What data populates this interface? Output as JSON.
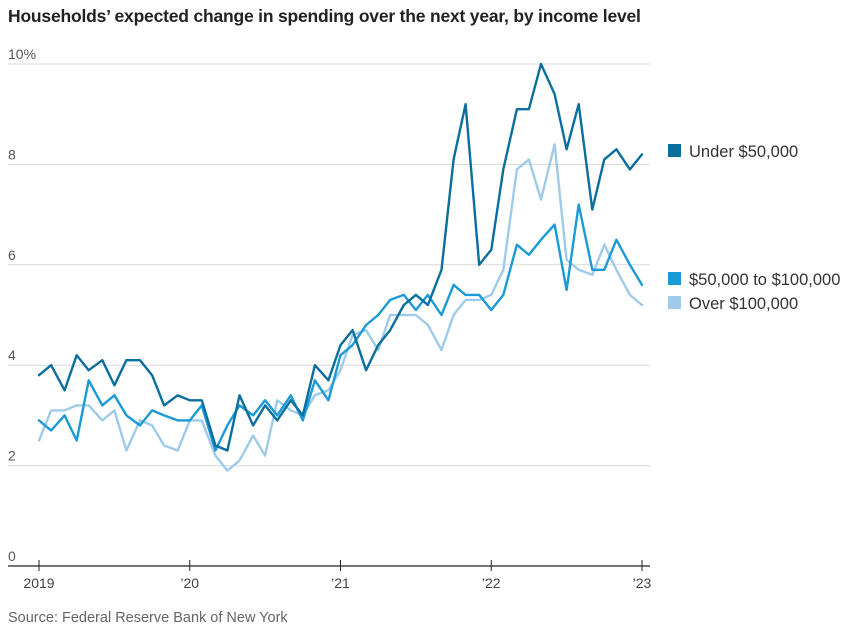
{
  "chart_data": {
    "type": "line",
    "title": "Households’ expected change in spending over the next year, by income level",
    "source": "Source: Federal Reserve Bank of New York",
    "y_ticks": [
      "10%",
      "8",
      "6",
      "4",
      "2",
      "0"
    ],
    "x_ticks": [
      "2019",
      "’20",
      "’21",
      "’22",
      "’23"
    ],
    "ylim": [
      0,
      10
    ],
    "xlim": [
      2019.0,
      2023.0
    ],
    "grid": true,
    "legend": "right",
    "series": [
      {
        "name": "Under $50,000",
        "color": "#0a6e9e",
        "x": [
          2019.0,
          2019.08,
          2019.17,
          2019.25,
          2019.33,
          2019.42,
          2019.5,
          2019.58,
          2019.67,
          2019.75,
          2019.83,
          2019.92,
          2020.0,
          2020.08,
          2020.17,
          2020.25,
          2020.33,
          2020.42,
          2020.5,
          2020.58,
          2020.67,
          2020.75,
          2020.83,
          2020.92,
          2021.0,
          2021.08,
          2021.17,
          2021.25,
          2021.33,
          2021.42,
          2021.5,
          2021.58,
          2021.67,
          2021.75,
          2021.83,
          2021.92,
          2022.0,
          2022.08,
          2022.17,
          2022.25,
          2022.33,
          2022.42,
          2022.5,
          2022.58,
          2022.67,
          2022.75,
          2022.83,
          2022.92,
          2023.0
        ],
        "values": [
          3.8,
          4.0,
          3.5,
          4.2,
          3.9,
          4.1,
          3.6,
          4.1,
          4.1,
          3.8,
          3.2,
          3.4,
          3.3,
          3.3,
          2.4,
          2.3,
          3.4,
          2.8,
          3.2,
          2.9,
          3.3,
          3.0,
          4.0,
          3.7,
          4.4,
          4.7,
          3.9,
          4.4,
          4.7,
          5.2,
          5.4,
          5.2,
          5.9,
          8.1,
          9.2,
          6.0,
          6.3,
          7.9,
          9.1,
          9.1,
          10.0,
          9.4,
          8.3,
          9.2,
          7.1,
          8.1,
          8.3,
          7.9,
          8.2
        ]
      },
      {
        "name": "$50,000 to $100,000",
        "color": "#1a9ad6",
        "x": [
          2019.0,
          2019.08,
          2019.17,
          2019.25,
          2019.33,
          2019.42,
          2019.5,
          2019.58,
          2019.67,
          2019.75,
          2019.83,
          2019.92,
          2020.0,
          2020.08,
          2020.17,
          2020.25,
          2020.33,
          2020.42,
          2020.5,
          2020.58,
          2020.67,
          2020.75,
          2020.83,
          2020.92,
          2021.0,
          2021.08,
          2021.17,
          2021.25,
          2021.33,
          2021.42,
          2021.5,
          2021.58,
          2021.67,
          2021.75,
          2021.83,
          2021.92,
          2022.0,
          2022.08,
          2022.17,
          2022.25,
          2022.33,
          2022.42,
          2022.5,
          2022.58,
          2022.67,
          2022.75,
          2022.83,
          2022.92,
          2023.0
        ],
        "values": [
          2.9,
          2.7,
          3.0,
          2.5,
          3.7,
          3.2,
          3.4,
          3.0,
          2.8,
          3.1,
          3.0,
          2.9,
          2.9,
          3.2,
          2.3,
          2.8,
          3.2,
          3.0,
          3.3,
          3.0,
          3.4,
          2.9,
          3.7,
          3.3,
          4.2,
          4.4,
          4.8,
          5.0,
          5.3,
          5.4,
          5.1,
          5.4,
          5.0,
          5.6,
          5.4,
          5.4,
          5.1,
          5.4,
          6.4,
          6.2,
          6.5,
          6.8,
          5.5,
          7.2,
          5.9,
          5.9,
          6.5,
          6.0,
          5.6
        ]
      },
      {
        "name": "Over $100,000",
        "color": "#9fcbea",
        "x": [
          2019.0,
          2019.08,
          2019.17,
          2019.25,
          2019.33,
          2019.42,
          2019.5,
          2019.58,
          2019.67,
          2019.75,
          2019.83,
          2019.92,
          2020.0,
          2020.08,
          2020.17,
          2020.25,
          2020.33,
          2020.42,
          2020.5,
          2020.58,
          2020.67,
          2020.75,
          2020.83,
          2020.92,
          2021.0,
          2021.08,
          2021.17,
          2021.25,
          2021.33,
          2021.42,
          2021.5,
          2021.58,
          2021.67,
          2021.75,
          2021.83,
          2021.92,
          2022.0,
          2022.08,
          2022.17,
          2022.25,
          2022.33,
          2022.42,
          2022.5,
          2022.58,
          2022.67,
          2022.75,
          2022.83,
          2022.92,
          2023.0
        ],
        "values": [
          2.5,
          3.1,
          3.1,
          3.2,
          3.2,
          2.9,
          3.1,
          2.3,
          2.9,
          2.8,
          2.4,
          2.3,
          2.9,
          2.9,
          2.2,
          1.9,
          2.1,
          2.6,
          2.2,
          3.3,
          3.1,
          3.0,
          3.4,
          3.5,
          3.9,
          4.6,
          4.7,
          4.3,
          5.0,
          5.0,
          5.0,
          4.8,
          4.3,
          5.0,
          5.3,
          5.3,
          5.4,
          5.9,
          7.9,
          8.1,
          7.3,
          8.4,
          6.1,
          5.9,
          5.8,
          6.4,
          5.9,
          5.4,
          5.2
        ]
      }
    ]
  }
}
